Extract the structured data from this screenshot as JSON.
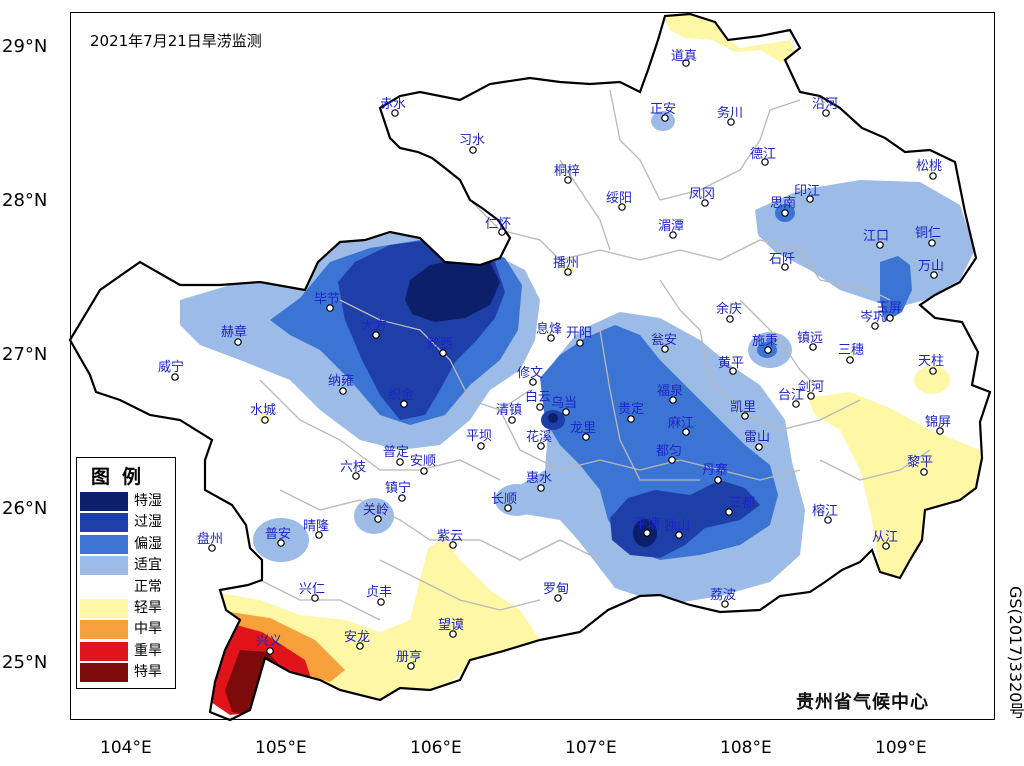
{
  "map": {
    "title": "2021年7月21日旱涝监测",
    "credit": "贵州省气候中心",
    "approval": "GS(2017)3320号"
  },
  "axes": {
    "latitude_labels": [
      "29°N",
      "28°N",
      "27°N",
      "26°N",
      "25°N"
    ],
    "longitude_labels": [
      "104°E",
      "105°E",
      "106°E",
      "107°E",
      "108°E",
      "109°E"
    ]
  },
  "legend": {
    "title": "图例",
    "items": [
      {
        "label": "特湿",
        "color": "#0b1f6b"
      },
      {
        "label": "过湿",
        "color": "#1f3fa8"
      },
      {
        "label": "偏湿",
        "color": "#3c74d4"
      },
      {
        "label": "适宜",
        "color": "#9cbbe6"
      },
      {
        "label": "正常",
        "color": "#ffffff"
      },
      {
        "label": "轻旱",
        "color": "#fdf7a6"
      },
      {
        "label": "中旱",
        "color": "#f7a13d"
      },
      {
        "label": "重旱",
        "color": "#e2141b"
      },
      {
        "label": "特旱",
        "color": "#7e0b0b"
      }
    ]
  },
  "stations": [
    "道真",
    "赤水",
    "正安",
    "务川",
    "沿河",
    "习水",
    "德江",
    "松桃",
    "桐梓",
    "绥阳",
    "凤冈",
    "印江",
    "思南",
    "仁怀",
    "湄潭",
    "江口",
    "铜仁",
    "播州",
    "石阡",
    "万山",
    "毕节",
    "赫章",
    "大方",
    "玉屏",
    "余庆",
    "岑巩",
    "息烽",
    "开阳",
    "瓮安",
    "施秉",
    "镇远",
    "三穗",
    "威宁",
    "黔西",
    "修文",
    "黄平",
    "天柱",
    "纳雍",
    "白云",
    "乌当",
    "福泉",
    "剑河",
    "台江",
    "水城",
    "织金",
    "清镇",
    "贵定",
    "凯里",
    "锦屏",
    "平坝",
    "花溪",
    "龙里",
    "麻江",
    "雷山",
    "普定",
    "安顺",
    "都匀",
    "六枝",
    "黎平",
    "镇宁",
    "丹寨",
    "惠水",
    "长顺",
    "三都",
    "关岭",
    "榕江",
    "平塘",
    "独山",
    "普安",
    "晴隆",
    "紫云",
    "从江",
    "盘州",
    "兴仁",
    "贞丰",
    "罗甸",
    "荔波",
    "安龙",
    "望谟",
    "兴义",
    "册亨"
  ]
}
